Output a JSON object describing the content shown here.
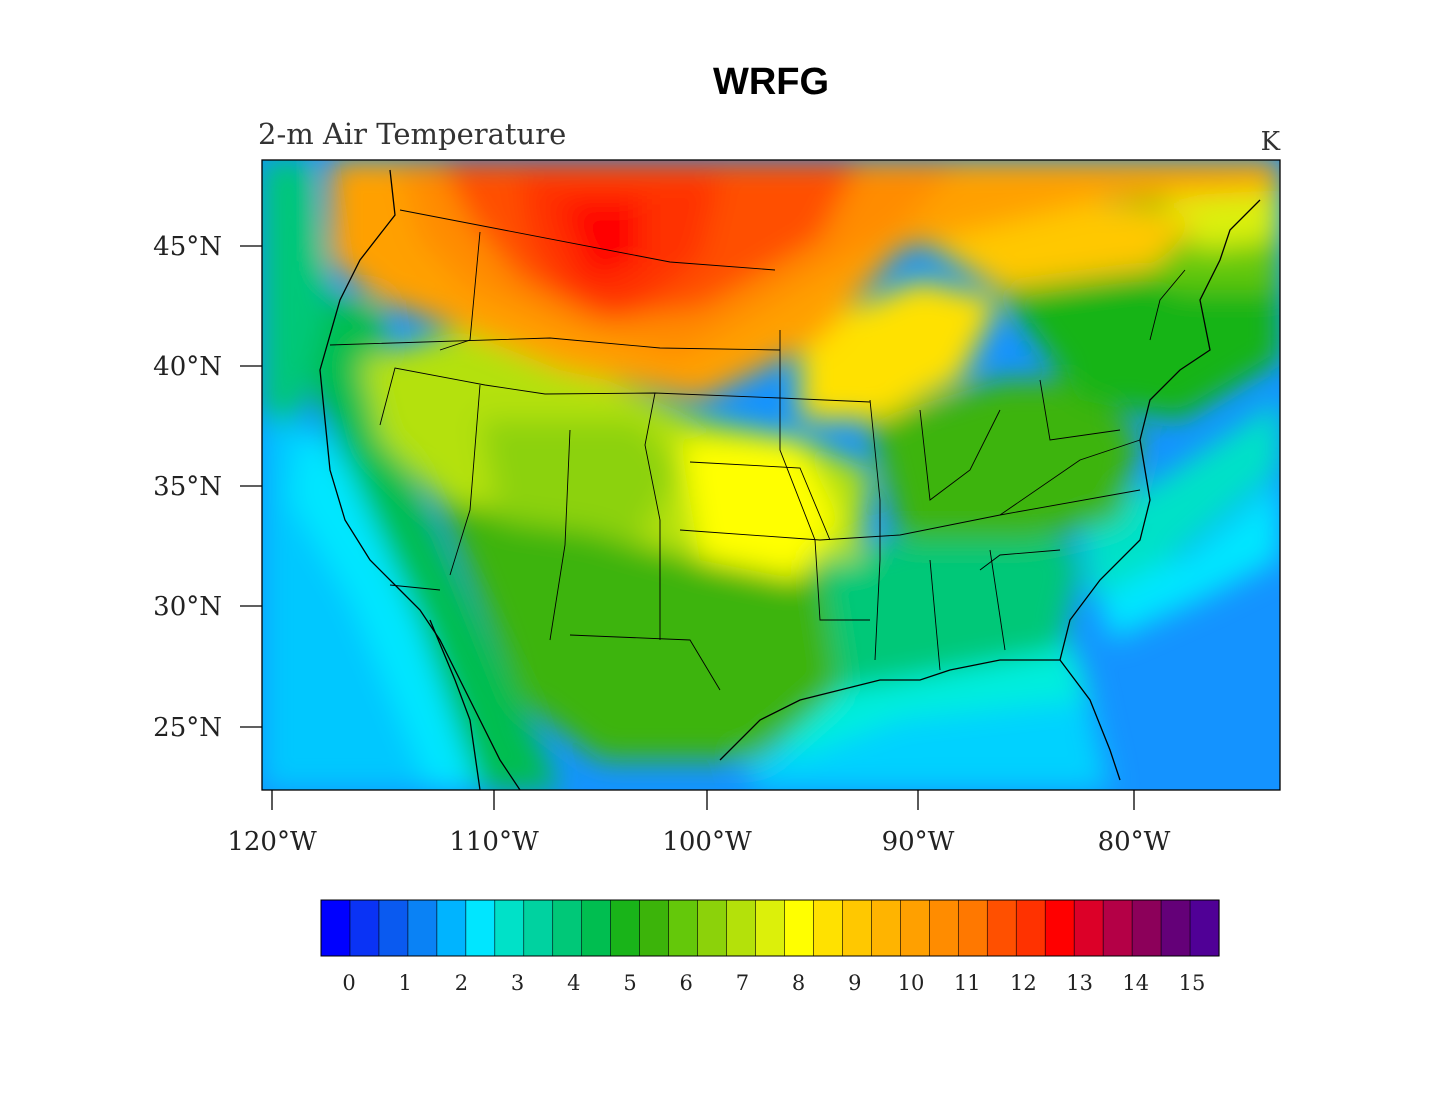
{
  "title": "WRFG",
  "subtitle_left": "2-m Air Temperature",
  "units_label": "K",
  "map": {
    "projection": "lambert-conformal",
    "extent": {
      "lon_min": -120.5,
      "lon_max": -73.5,
      "lat_min": 22.5,
      "lat_max": 48.5
    },
    "lat_ticks": [
      {
        "value": 45,
        "label": "45°N"
      },
      {
        "value": 40,
        "label": "40°N"
      },
      {
        "value": 35,
        "label": "35°N"
      },
      {
        "value": 30,
        "label": "30°N"
      },
      {
        "value": 25,
        "label": "25°N"
      }
    ],
    "lon_ticks": [
      {
        "value": -120,
        "label": "120°W"
      },
      {
        "value": -110,
        "label": "110°W"
      },
      {
        "value": -100,
        "label": "100°W"
      },
      {
        "value": -90,
        "label": "90°W"
      },
      {
        "value": -80,
        "label": "80°W"
      }
    ],
    "field_summary": "2-m air temperature difference field; highest (11–13 K) over northern Rockies/Northern Plains, lowest (0.5–2 K) over Pacific and Gulf/Atlantic oceans"
  },
  "colorbar": {
    "colors": [
      "#0000ff",
      "#0a33f5",
      "#0a5af0",
      "#0a82f5",
      "#00b4ff",
      "#00e6ff",
      "#00e1c8",
      "#00d2a0",
      "#00c878",
      "#00be50",
      "#19b419",
      "#3cb40a",
      "#64c80a",
      "#8cd20a",
      "#b4e10a",
      "#dcf00a",
      "#ffff00",
      "#ffe100",
      "#ffc800",
      "#ffb400",
      "#ffa000",
      "#ff8c00",
      "#ff7800",
      "#ff5000",
      "#ff3200",
      "#ff0000",
      "#dc0028",
      "#b40046",
      "#8c005a",
      "#640078",
      "#500096"
    ],
    "labels": [
      "0",
      "1",
      "2",
      "3",
      "4",
      "5",
      "6",
      "7",
      "8",
      "9",
      "10",
      "11",
      "12",
      "13",
      "14",
      "15"
    ]
  }
}
